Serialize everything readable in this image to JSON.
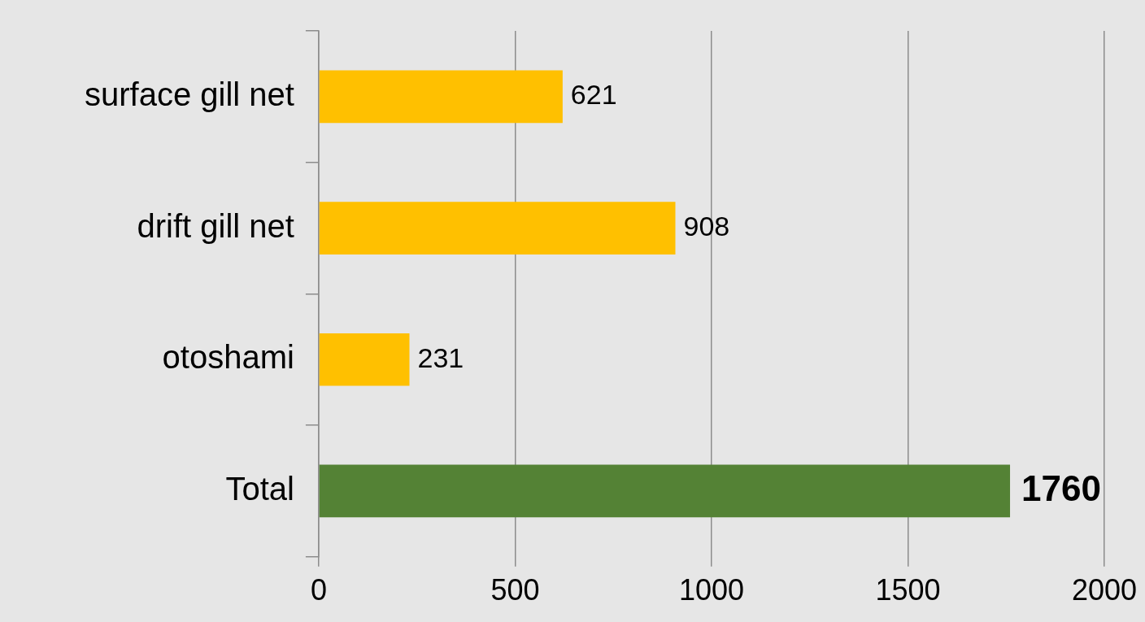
{
  "chart_data": {
    "type": "bar",
    "orientation": "horizontal",
    "categories": [
      "surface gill net",
      "drift gill net",
      "otoshami",
      "Total"
    ],
    "values": [
      621,
      908,
      231,
      1760
    ],
    "colors": [
      "#ffc000",
      "#ffc000",
      "#ffc000",
      "#548235"
    ],
    "xlim": [
      0,
      2000
    ],
    "xticks": [
      0,
      500,
      1000,
      1500,
      2000
    ],
    "grid": "x",
    "data_labels": true,
    "legend": false
  }
}
